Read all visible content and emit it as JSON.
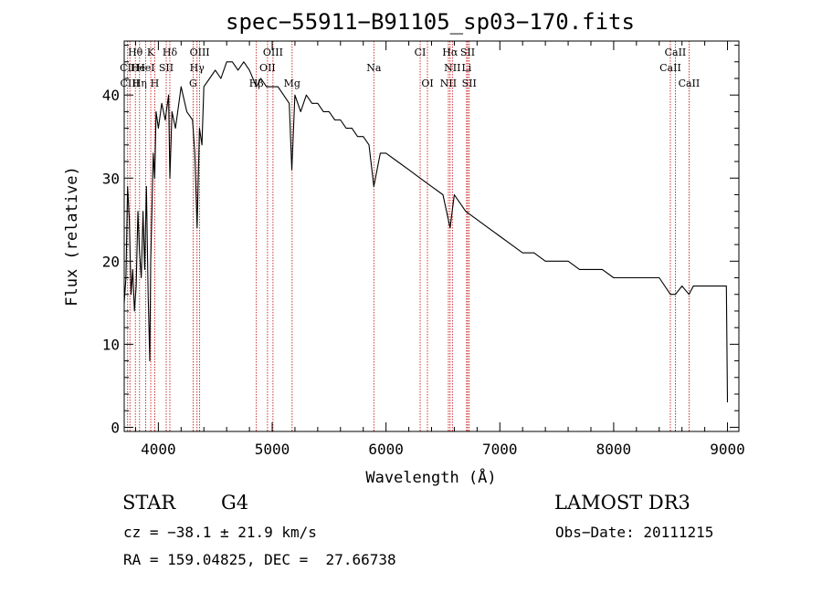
{
  "chart_data": {
    "type": "line",
    "title": "spec−55911−B91105_sp03−170.fits",
    "xlabel": "Wavelength (Å)",
    "ylabel": "Flux (relative)",
    "xlim": [
      3700,
      9100
    ],
    "ylim": [
      -0.5,
      46.5
    ],
    "xticks": [
      4000,
      5000,
      6000,
      7000,
      8000,
      9000
    ],
    "yticks": [
      0,
      10,
      20,
      30,
      40
    ],
    "series": [
      {
        "name": "flux",
        "x": [
          3700,
          3715,
          3730,
          3745,
          3760,
          3775,
          3790,
          3805,
          3820,
          3835,
          3850,
          3865,
          3880,
          3895,
          3910,
          3925,
          3933,
          3940,
          3955,
          3968,
          3980,
          4000,
          4030,
          4060,
          4090,
          4101,
          4120,
          4150,
          4200,
          4250,
          4300,
          4320,
          4340,
          4361,
          4383,
          4400,
          4450,
          4500,
          4550,
          4600,
          4650,
          4700,
          4750,
          4800,
          4861,
          4900,
          4950,
          5000,
          5050,
          5100,
          5150,
          5172,
          5200,
          5250,
          5300,
          5350,
          5400,
          5450,
          5500,
          5550,
          5600,
          5650,
          5700,
          5750,
          5800,
          5850,
          5893,
          5950,
          6000,
          6100,
          6200,
          6300,
          6400,
          6500,
          6563,
          6600,
          6700,
          6800,
          6900,
          7000,
          7100,
          7200,
          7300,
          7400,
          7500,
          7600,
          7700,
          7800,
          7900,
          8000,
          8100,
          8200,
          8300,
          8400,
          8498,
          8542,
          8600,
          8662,
          8700,
          8800,
          8900,
          8990,
          9000
        ],
        "values": [
          15,
          18,
          29,
          25,
          16,
          19,
          14,
          17,
          26,
          21,
          18,
          26,
          19,
          29,
          16,
          8,
          20,
          24,
          33,
          30,
          38,
          36,
          39,
          37,
          40,
          30,
          38,
          36,
          41,
          38,
          37,
          33,
          24,
          36,
          34,
          41,
          42,
          43,
          42,
          44,
          44,
          43,
          44,
          43,
          41,
          42,
          41,
          41,
          41,
          40,
          39,
          31,
          40,
          38,
          40,
          39,
          39,
          38,
          38,
          37,
          37,
          36,
          36,
          35,
          35,
          34,
          29,
          33,
          33,
          32,
          31,
          30,
          29,
          28,
          24,
          28,
          26,
          25,
          24,
          23,
          22,
          21,
          21,
          20,
          20,
          20,
          19,
          19,
          19,
          18,
          18,
          18,
          18,
          18,
          16,
          16,
          17,
          16,
          17,
          17,
          17,
          17,
          3
        ]
      }
    ],
    "annotations": [
      {
        "text": "Hθ",
        "x": 3798,
        "row": 1
      },
      {
        "text": "K",
        "x": 3933,
        "row": 1
      },
      {
        "text": "Hδ",
        "x": 4101,
        "row": 1
      },
      {
        "text": "OIII",
        "x": 4363,
        "row": 1
      },
      {
        "text": "OIII",
        "x": 5007,
        "row": 1
      },
      {
        "text": "CI",
        "x": 6300,
        "row": 1
      },
      {
        "text": "Hα",
        "x": 6563,
        "row": 1
      },
      {
        "text": "SII",
        "x": 6717,
        "row": 1
      },
      {
        "text": "CaII",
        "x": 8542,
        "row": 1
      },
      {
        "text": "CII",
        "x": 3730,
        "row": 2
      },
      {
        "text": "He",
        "x": 3820,
        "row": 2
      },
      {
        "text": "HeI",
        "x": 3888,
        "row": 2
      },
      {
        "text": "SII",
        "x": 4069,
        "row": 2
      },
      {
        "text": "Hγ",
        "x": 4340,
        "row": 2
      },
      {
        "text": "OII",
        "x": 4959,
        "row": 2
      },
      {
        "text": "Na",
        "x": 5893,
        "row": 2
      },
      {
        "text": "NII",
        "x": 6583,
        "row": 2
      },
      {
        "text": "Li",
        "x": 6708,
        "row": 2
      },
      {
        "text": "CaII",
        "x": 8498,
        "row": 2
      },
      {
        "text": "CIII",
        "x": 3750,
        "row": 3
      },
      {
        "text": "Hη",
        "x": 3835,
        "row": 3
      },
      {
        "text": "H",
        "x": 3968,
        "row": 3
      },
      {
        "text": "G",
        "x": 4305,
        "row": 3
      },
      {
        "text": "Hβ",
        "x": 4861,
        "row": 3
      },
      {
        "text": "Mg",
        "x": 5175,
        "row": 3
      },
      {
        "text": "OI",
        "x": 6364,
        "row": 3
      },
      {
        "text": "NII",
        "x": 6548,
        "row": 3
      },
      {
        "text": "SII",
        "x": 6731,
        "row": 3
      },
      {
        "text": "CaII",
        "x": 8662,
        "row": 3
      }
    ],
    "marker_lines": [
      3730,
      3750,
      3798,
      3835,
      3889,
      3933,
      3968,
      4069,
      4101,
      4305,
      4340,
      4363,
      4861,
      4959,
      5007,
      5175,
      5893,
      6300,
      6364,
      6548,
      6563,
      6583,
      6708,
      6717,
      6731,
      8498,
      8542,
      8662
    ],
    "colors": {
      "axis": "#000000",
      "spectrum": "#000000",
      "marker": "#c00000"
    }
  },
  "info": {
    "class": "STAR",
    "subclass": "G4",
    "survey": "LAMOST DR3",
    "cz": "cz = −38.1 ± 21.9 km/s",
    "obs_date": "Obs−Date: 20111215",
    "radec": "RA = 159.04825, DEC =  27.66738"
  }
}
